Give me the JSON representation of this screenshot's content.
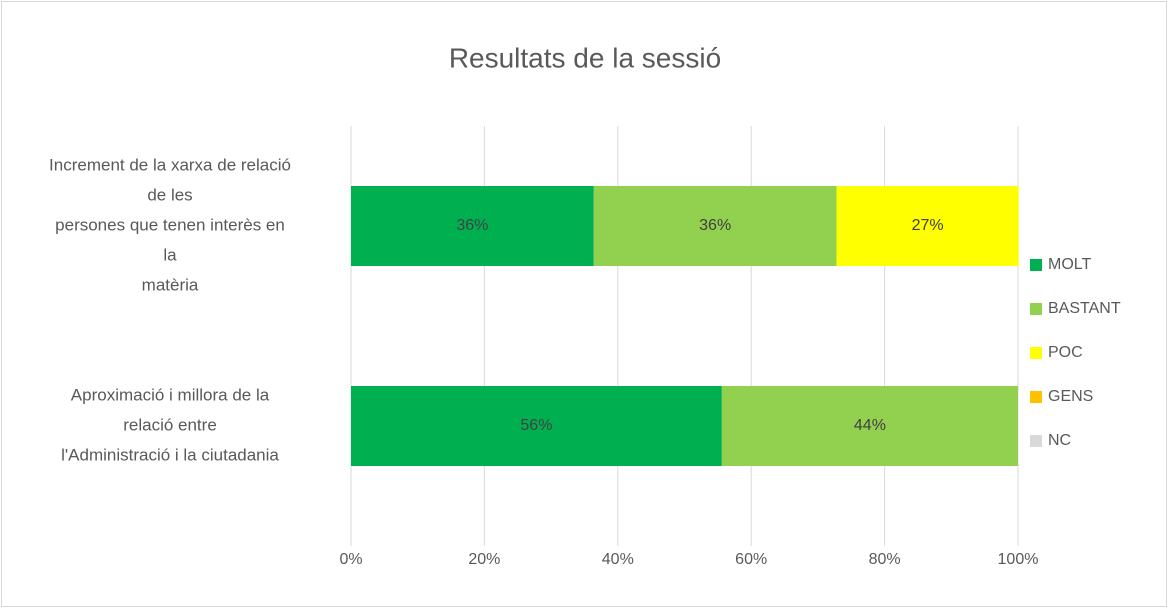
{
  "chart_data": {
    "type": "stacked_bar_horizontal",
    "title": "Resultats de la sessió",
    "categories": [
      [
        "Increment de la xarxa de relació",
        "de les",
        "persones que tenen interès en",
        "la",
        "matèria"
      ],
      [
        "Aproximació i millora de la",
        "relació entre",
        "l'Administració i la ciutadania"
      ]
    ],
    "series": [
      {
        "name": "MOLT",
        "color": "#00b050",
        "values": [
          36.4,
          55.6
        ],
        "value_labels": [
          "36%",
          "56%"
        ]
      },
      {
        "name": "BASTANT",
        "color": "#92d050",
        "values": [
          36.4,
          44.4
        ],
        "value_labels": [
          "36%",
          "44%"
        ]
      },
      {
        "name": "POC",
        "color": "#ffff00",
        "values": [
          27.3,
          0
        ],
        "value_labels": [
          "27%",
          null
        ]
      },
      {
        "name": "GENS",
        "color": "#ffc000",
        "values": [
          0,
          0
        ],
        "value_labels": [
          null,
          null
        ]
      },
      {
        "name": "NC",
        "color": "#d9d9d9",
        "values": [
          0,
          0
        ],
        "value_labels": [
          null,
          null
        ]
      }
    ],
    "xlim": [
      0,
      100
    ],
    "xticks": [
      {
        "value": 0,
        "label": "0%"
      },
      {
        "value": 20,
        "label": "20%"
      },
      {
        "value": 40,
        "label": "40%"
      },
      {
        "value": 60,
        "label": "60%"
      },
      {
        "value": 80,
        "label": "80%"
      },
      {
        "value": 100,
        "label": "100%"
      }
    ],
    "grid": true,
    "legend": "right"
  }
}
